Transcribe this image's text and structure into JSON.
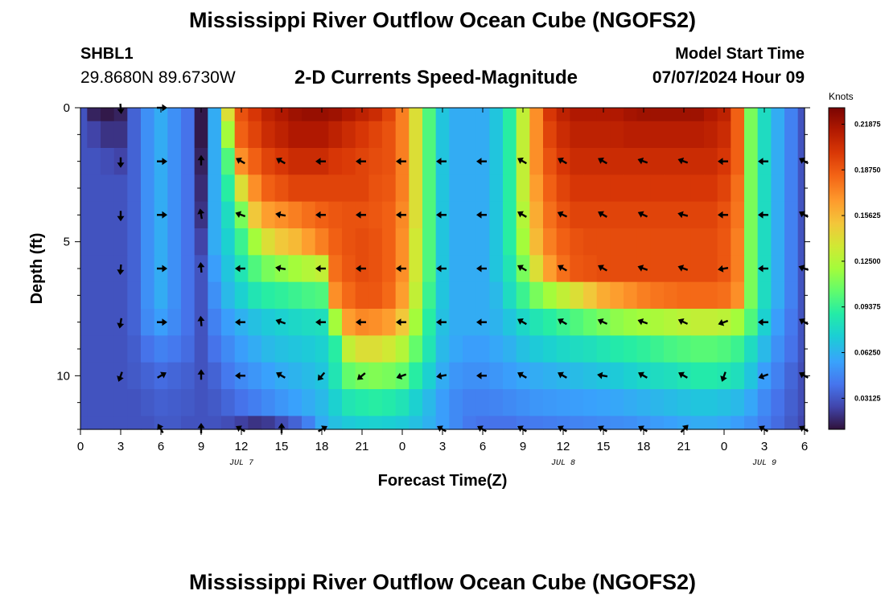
{
  "page": {
    "title": "Mississippi River Outflow Ocean Cube (NGOFS2)",
    "title_bottom": "Mississippi River Outflow Ocean Cube (NGOFS2)",
    "station": "SHBL1",
    "coords": "29.8680N  89.6730W",
    "subtitle": "2-D Currents Speed-Magnitude",
    "model_start_label": "Model Start Time",
    "model_start_value": "07/07/2024 Hour 09"
  },
  "chart_data": {
    "type": "heatmap",
    "title": "2-D Currents Speed-Magnitude",
    "xlabel": "Forecast Time(Z)",
    "ylabel": "Depth (ft)",
    "x_tick_labels": [
      "0",
      "3",
      "6",
      "9",
      "12",
      "15",
      "18",
      "21",
      "0",
      "3",
      "6",
      "9",
      "12",
      "15",
      "18",
      "21",
      "0",
      "3",
      "6"
    ],
    "date_labels": [
      {
        "text": "JUL 7",
        "tick_index": 4
      },
      {
        "text": "JUL 8",
        "tick_index": 12
      },
      {
        "text": "JUL 9",
        "tick_index": 17
      }
    ],
    "xlim_hours": [
      0,
      54
    ],
    "ylim_ft": [
      0,
      12
    ],
    "y_ticks": [
      0,
      5,
      10
    ],
    "y_reversed": true,
    "colorbar": {
      "label": "Knots",
      "ticks": [
        "0.03125",
        "0.06250",
        "0.09375",
        "0.12500",
        "0.15625",
        "0.18750",
        "0.21875"
      ],
      "vmin": 0.01,
      "vmax": 0.23
    },
    "depth_rows_ft": [
      0,
      1,
      2,
      3,
      4,
      5,
      6,
      7,
      8,
      9,
      10,
      11,
      12
    ],
    "time_hours": [
      0,
      1,
      2,
      3,
      4,
      5,
      6,
      7,
      8,
      9,
      10,
      11,
      12,
      13,
      14,
      15,
      16,
      17,
      18,
      19,
      20,
      21,
      22,
      23,
      24,
      25,
      26,
      27,
      28,
      29,
      30,
      31,
      32,
      33,
      34,
      35,
      36,
      37,
      38,
      39,
      40,
      41,
      42,
      43,
      44,
      45,
      46,
      47,
      48,
      49,
      50,
      51,
      52,
      53,
      54
    ],
    "speed_knots": [
      [
        0.03,
        0.015,
        0.012,
        0.015,
        0.035,
        0.05,
        0.06,
        0.05,
        0.04,
        0.012,
        0.06,
        0.14,
        0.19,
        0.2,
        0.21,
        0.215,
        0.22,
        0.222,
        0.222,
        0.22,
        0.215,
        0.21,
        0.205,
        0.195,
        0.175,
        0.14,
        0.1,
        0.07,
        0.06,
        0.06,
        0.06,
        0.07,
        0.09,
        0.13,
        0.17,
        0.2,
        0.21,
        0.215,
        0.215,
        0.215,
        0.215,
        0.218,
        0.22,
        0.22,
        0.22,
        0.22,
        0.22,
        0.215,
        0.21,
        0.185,
        0.11,
        0.08,
        0.06,
        0.045,
        0.03
      ],
      [
        0.03,
        0.025,
        0.02,
        0.02,
        0.035,
        0.05,
        0.06,
        0.05,
        0.04,
        0.012,
        0.06,
        0.12,
        0.185,
        0.195,
        0.205,
        0.21,
        0.215,
        0.215,
        0.215,
        0.21,
        0.205,
        0.2,
        0.195,
        0.19,
        0.175,
        0.14,
        0.1,
        0.07,
        0.06,
        0.06,
        0.06,
        0.07,
        0.09,
        0.13,
        0.17,
        0.195,
        0.205,
        0.21,
        0.21,
        0.21,
        0.21,
        0.212,
        0.212,
        0.212,
        0.212,
        0.212,
        0.212,
        0.21,
        0.205,
        0.185,
        0.11,
        0.08,
        0.06,
        0.045,
        0.03
      ],
      [
        0.03,
        0.03,
        0.028,
        0.025,
        0.035,
        0.05,
        0.06,
        0.05,
        0.04,
        0.015,
        0.06,
        0.1,
        0.17,
        0.185,
        0.195,
        0.2,
        0.205,
        0.205,
        0.205,
        0.2,
        0.198,
        0.195,
        0.192,
        0.19,
        0.175,
        0.14,
        0.1,
        0.07,
        0.06,
        0.06,
        0.06,
        0.07,
        0.09,
        0.13,
        0.17,
        0.19,
        0.2,
        0.205,
        0.205,
        0.205,
        0.205,
        0.205,
        0.205,
        0.205,
        0.205,
        0.205,
        0.205,
        0.205,
        0.2,
        0.185,
        0.11,
        0.08,
        0.06,
        0.045,
        0.03
      ],
      [
        0.03,
        0.03,
        0.03,
        0.03,
        0.035,
        0.05,
        0.06,
        0.05,
        0.04,
        0.018,
        0.06,
        0.09,
        0.14,
        0.17,
        0.185,
        0.19,
        0.195,
        0.195,
        0.195,
        0.195,
        0.195,
        0.195,
        0.19,
        0.188,
        0.175,
        0.14,
        0.1,
        0.07,
        0.06,
        0.06,
        0.06,
        0.07,
        0.09,
        0.13,
        0.165,
        0.185,
        0.195,
        0.2,
        0.2,
        0.2,
        0.2,
        0.2,
        0.2,
        0.2,
        0.2,
        0.2,
        0.2,
        0.2,
        0.195,
        0.18,
        0.11,
        0.08,
        0.06,
        0.045,
        0.03
      ],
      [
        0.03,
        0.03,
        0.03,
        0.03,
        0.035,
        0.05,
        0.06,
        0.05,
        0.04,
        0.02,
        0.06,
        0.08,
        0.11,
        0.15,
        0.165,
        0.17,
        0.175,
        0.18,
        0.185,
        0.188,
        0.19,
        0.19,
        0.188,
        0.185,
        0.172,
        0.14,
        0.1,
        0.07,
        0.06,
        0.06,
        0.06,
        0.07,
        0.09,
        0.125,
        0.16,
        0.18,
        0.19,
        0.195,
        0.195,
        0.195,
        0.195,
        0.195,
        0.195,
        0.195,
        0.195,
        0.195,
        0.195,
        0.195,
        0.19,
        0.178,
        0.11,
        0.08,
        0.06,
        0.045,
        0.03
      ],
      [
        0.03,
        0.03,
        0.03,
        0.03,
        0.035,
        0.05,
        0.06,
        0.05,
        0.04,
        0.025,
        0.06,
        0.075,
        0.095,
        0.12,
        0.14,
        0.15,
        0.155,
        0.165,
        0.175,
        0.185,
        0.19,
        0.192,
        0.19,
        0.185,
        0.17,
        0.135,
        0.1,
        0.07,
        0.06,
        0.06,
        0.06,
        0.07,
        0.09,
        0.12,
        0.155,
        0.175,
        0.185,
        0.19,
        0.192,
        0.192,
        0.192,
        0.192,
        0.192,
        0.192,
        0.192,
        0.192,
        0.192,
        0.192,
        0.188,
        0.175,
        0.11,
        0.08,
        0.06,
        0.045,
        0.03
      ],
      [
        0.03,
        0.03,
        0.03,
        0.03,
        0.035,
        0.05,
        0.06,
        0.05,
        0.04,
        0.03,
        0.055,
        0.07,
        0.085,
        0.1,
        0.11,
        0.115,
        0.12,
        0.125,
        0.13,
        0.18,
        0.188,
        0.192,
        0.19,
        0.185,
        0.17,
        0.135,
        0.1,
        0.07,
        0.06,
        0.06,
        0.06,
        0.07,
        0.085,
        0.11,
        0.14,
        0.165,
        0.18,
        0.188,
        0.19,
        0.192,
        0.192,
        0.192,
        0.192,
        0.192,
        0.192,
        0.192,
        0.192,
        0.192,
        0.188,
        0.175,
        0.11,
        0.08,
        0.06,
        0.045,
        0.03
      ],
      [
        0.03,
        0.03,
        0.03,
        0.03,
        0.035,
        0.05,
        0.06,
        0.05,
        0.04,
        0.03,
        0.05,
        0.065,
        0.075,
        0.085,
        0.09,
        0.092,
        0.095,
        0.098,
        0.1,
        0.17,
        0.182,
        0.188,
        0.188,
        0.182,
        0.165,
        0.13,
        0.095,
        0.07,
        0.06,
        0.06,
        0.06,
        0.065,
        0.08,
        0.095,
        0.11,
        0.12,
        0.13,
        0.14,
        0.15,
        0.16,
        0.165,
        0.17,
        0.175,
        0.178,
        0.18,
        0.182,
        0.182,
        0.182,
        0.18,
        0.17,
        0.11,
        0.08,
        0.06,
        0.045,
        0.03
      ],
      [
        0.03,
        0.03,
        0.03,
        0.03,
        0.035,
        0.048,
        0.055,
        0.048,
        0.04,
        0.03,
        0.045,
        0.055,
        0.062,
        0.068,
        0.072,
        0.075,
        0.078,
        0.08,
        0.082,
        0.12,
        0.165,
        0.172,
        0.17,
        0.165,
        0.15,
        0.12,
        0.09,
        0.068,
        0.06,
        0.06,
        0.06,
        0.063,
        0.07,
        0.078,
        0.085,
        0.09,
        0.095,
        0.1,
        0.105,
        0.11,
        0.115,
        0.118,
        0.12,
        0.122,
        0.125,
        0.128,
        0.13,
        0.13,
        0.128,
        0.12,
        0.1,
        0.075,
        0.055,
        0.042,
        0.03
      ],
      [
        0.03,
        0.03,
        0.03,
        0.03,
        0.033,
        0.04,
        0.045,
        0.042,
        0.038,
        0.03,
        0.04,
        0.048,
        0.055,
        0.06,
        0.065,
        0.068,
        0.07,
        0.072,
        0.075,
        0.09,
        0.13,
        0.14,
        0.14,
        0.135,
        0.125,
        0.105,
        0.085,
        0.065,
        0.058,
        0.055,
        0.055,
        0.058,
        0.062,
        0.068,
        0.072,
        0.075,
        0.078,
        0.08,
        0.082,
        0.085,
        0.088,
        0.09,
        0.092,
        0.095,
        0.098,
        0.1,
        0.102,
        0.102,
        0.1,
        0.095,
        0.08,
        0.065,
        0.05,
        0.04,
        0.03
      ],
      [
        0.03,
        0.03,
        0.03,
        0.03,
        0.032,
        0.035,
        0.038,
        0.036,
        0.034,
        0.03,
        0.035,
        0.042,
        0.048,
        0.052,
        0.056,
        0.06,
        0.063,
        0.066,
        0.07,
        0.085,
        0.105,
        0.11,
        0.112,
        0.11,
        0.105,
        0.09,
        0.075,
        0.06,
        0.052,
        0.05,
        0.05,
        0.052,
        0.055,
        0.058,
        0.06,
        0.062,
        0.064,
        0.066,
        0.068,
        0.07,
        0.072,
        0.075,
        0.078,
        0.08,
        0.082,
        0.085,
        0.088,
        0.088,
        0.086,
        0.082,
        0.07,
        0.055,
        0.045,
        0.036,
        0.028
      ],
      [
        0.03,
        0.03,
        0.03,
        0.03,
        0.03,
        0.032,
        0.034,
        0.033,
        0.032,
        0.03,
        0.032,
        0.036,
        0.04,
        0.044,
        0.048,
        0.052,
        0.056,
        0.06,
        0.065,
        0.075,
        0.085,
        0.088,
        0.09,
        0.088,
        0.084,
        0.075,
        0.065,
        0.055,
        0.048,
        0.045,
        0.045,
        0.046,
        0.048,
        0.05,
        0.052,
        0.053,
        0.054,
        0.055,
        0.056,
        0.057,
        0.058,
        0.06,
        0.062,
        0.064,
        0.066,
        0.068,
        0.07,
        0.07,
        0.068,
        0.065,
        0.058,
        0.048,
        0.04,
        0.034,
        0.028
      ],
      [
        0.03,
        0.03,
        0.03,
        0.03,
        0.03,
        0.03,
        0.032,
        0.032,
        0.03,
        0.03,
        0.03,
        0.028,
        0.024,
        0.02,
        0.022,
        0.028,
        0.035,
        0.045,
        0.06,
        0.068,
        0.072,
        0.074,
        0.075,
        0.074,
        0.072,
        0.068,
        0.062,
        0.055,
        0.048,
        0.042,
        0.04,
        0.04,
        0.04,
        0.042,
        0.043,
        0.044,
        0.045,
        0.046,
        0.047,
        0.048,
        0.049,
        0.05,
        0.052,
        0.054,
        0.056,
        0.058,
        0.06,
        0.06,
        0.058,
        0.055,
        0.05,
        0.044,
        0.038,
        0.032,
        0.026
      ]
    ],
    "vector_depths_ft": [
      0,
      2,
      4,
      6,
      8,
      10,
      12
    ],
    "vector_times_hours": [
      3,
      6,
      9,
      12,
      15,
      18,
      21,
      24,
      27,
      30,
      33,
      36,
      39,
      42,
      45,
      48,
      51,
      54
    ],
    "vector_directions_deg": [
      [
        175,
        90,
        null,
        null,
        null,
        null,
        null,
        null,
        null,
        null,
        null,
        null,
        null,
        null,
        null,
        null,
        null,
        null
      ],
      [
        180,
        90,
        0,
        300,
        300,
        270,
        270,
        270,
        270,
        270,
        300,
        300,
        300,
        290,
        290,
        270,
        270,
        300
      ],
      [
        180,
        90,
        350,
        290,
        280,
        270,
        270,
        270,
        270,
        270,
        300,
        295,
        300,
        295,
        285,
        270,
        270,
        300
      ],
      [
        185,
        90,
        355,
        270,
        280,
        270,
        270,
        270,
        270,
        270,
        300,
        300,
        300,
        290,
        290,
        260,
        270,
        290
      ],
      [
        190,
        90,
        355,
        270,
        290,
        270,
        270,
        270,
        270,
        270,
        300,
        300,
        295,
        290,
        295,
        250,
        270,
        300
      ],
      [
        200,
        60,
        0,
        270,
        300,
        220,
        230,
        250,
        260,
        270,
        300,
        300,
        280,
        300,
        300,
        200,
        250,
        300
      ],
      [
        null,
        330,
        0,
        300,
        0,
        60,
        null,
        null,
        300,
        300,
        300,
        300,
        300,
        300,
        45,
        null,
        300,
        300
      ]
    ]
  }
}
